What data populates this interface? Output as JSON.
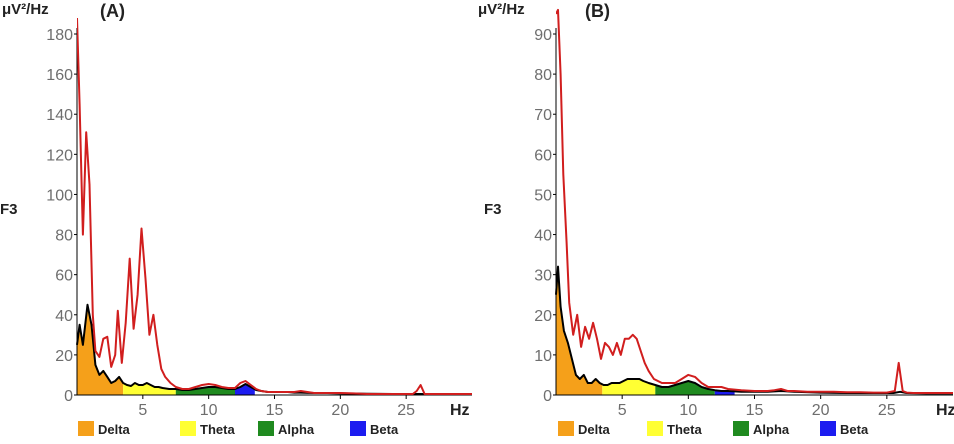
{
  "colors": {
    "delta": "#f5a01a",
    "theta": "#ffff33",
    "alpha": "#1f8a1f",
    "beta": "#1c1cf0",
    "red_trace": "#d11e1e",
    "black_trace": "#000000"
  },
  "legend": [
    {
      "key": "delta",
      "label": "Delta"
    },
    {
      "key": "theta",
      "label": "Theta"
    },
    {
      "key": "alpha",
      "label": "Alpha"
    },
    {
      "key": "beta",
      "label": "Beta"
    }
  ],
  "chart_data": [
    {
      "type": "line",
      "title": "(A)",
      "ylabel": "μV²/Hz",
      "xlabel": "Hz",
      "channel": "F3",
      "xlim": [
        0,
        30
      ],
      "ylim": [
        0,
        190
      ],
      "xticks": [
        5,
        10,
        15,
        20,
        25
      ],
      "yticks": [
        0,
        20,
        40,
        60,
        80,
        100,
        120,
        140,
        160,
        180
      ],
      "bands": [
        {
          "name": "Delta",
          "from": 0,
          "to": 3.5
        },
        {
          "name": "Theta",
          "from": 3.5,
          "to": 7.5
        },
        {
          "name": "Alpha",
          "from": 7.5,
          "to": 12
        },
        {
          "name": "Beta",
          "from": 12,
          "to": 13.5
        }
      ],
      "series": [
        {
          "name": "red",
          "x": [
            0,
            0.2,
            0.45,
            0.7,
            0.95,
            1.2,
            1.4,
            1.7,
            2.0,
            2.3,
            2.6,
            2.9,
            3.1,
            3.4,
            3.7,
            4.0,
            4.3,
            4.6,
            4.9,
            5.2,
            5.5,
            5.8,
            6.1,
            6.4,
            6.7,
            7.1,
            7.5,
            8.0,
            8.5,
            9.0,
            9.5,
            10.0,
            10.5,
            11.0,
            11.5,
            12.0,
            12.4,
            12.8,
            13.2,
            13.6,
            14.0,
            14.5,
            15.0,
            15.5,
            16.0,
            16.5,
            17.0,
            18.0,
            19.0,
            20.0,
            21.0,
            22.0,
            23.0,
            24.0,
            25.0,
            25.5,
            25.8,
            26.1,
            26.4,
            27.0,
            28.0,
            29.0,
            30.0
          ],
          "values": [
            188,
            145,
            80,
            131,
            105,
            40,
            22,
            19,
            28,
            29,
            14,
            20,
            42,
            16,
            36,
            68,
            33,
            50,
            83,
            58,
            30,
            40,
            25,
            13,
            9,
            6,
            4,
            3,
            3,
            4,
            5,
            5.5,
            5,
            4,
            3.5,
            3.5,
            6,
            7,
            5,
            3,
            2,
            1.5,
            1.5,
            1.5,
            1.5,
            1.5,
            2,
            1,
            1,
            1,
            0.8,
            0.5,
            0.5,
            0.5,
            0.5,
            0.5,
            2,
            5,
            0.5,
            0.5,
            0.5,
            0.5,
            0.5
          ]
        },
        {
          "name": "black",
          "x": [
            0,
            0.2,
            0.45,
            0.8,
            1.1,
            1.4,
            1.7,
            2.0,
            2.3,
            2.6,
            2.9,
            3.2,
            3.5,
            3.8,
            4.1,
            4.4,
            4.7,
            5.0,
            5.3,
            5.6,
            5.9,
            6.2,
            6.5,
            7.0,
            7.5,
            8.0,
            8.5,
            9.0,
            9.5,
            10.0,
            10.5,
            11.0,
            11.5,
            12.0,
            12.4,
            12.8,
            13.2,
            13.6,
            14.0,
            14.5,
            15.0,
            15.5,
            16.0,
            16.5,
            17.0,
            18.0,
            19.0,
            20.0,
            22.0,
            24.0,
            26.0,
            28.0,
            30.0
          ],
          "values": [
            25,
            35,
            25,
            45,
            35,
            15,
            10,
            12,
            9,
            6,
            7,
            9,
            6,
            5,
            4.5,
            6,
            5,
            5,
            6,
            5,
            4,
            4,
            3.5,
            3,
            3,
            2.5,
            2.5,
            3,
            3.5,
            4,
            4,
            3.5,
            3,
            3,
            4,
            5.5,
            4,
            2.5,
            2,
            1.5,
            1.5,
            1.5,
            1.5,
            1.2,
            1.2,
            1,
            1,
            0.8,
            0.6,
            0.5,
            0.5,
            0.4,
            0.4
          ]
        }
      ]
    },
    {
      "type": "line",
      "title": "(B)",
      "ylabel": "μV²/Hz",
      "xlabel": "Hz",
      "channel": "F3",
      "xlim": [
        0,
        30
      ],
      "ylim": [
        0,
        95
      ],
      "xticks": [
        5,
        10,
        15,
        20,
        25
      ],
      "yticks": [
        0,
        10,
        20,
        30,
        40,
        50,
        60,
        70,
        80,
        90
      ],
      "bands": [
        {
          "name": "Delta",
          "from": 0,
          "to": 3.5
        },
        {
          "name": "Theta",
          "from": 3.5,
          "to": 7.5
        },
        {
          "name": "Alpha",
          "from": 7.5,
          "to": 12
        },
        {
          "name": "Beta",
          "from": 12,
          "to": 13.5
        }
      ],
      "series": [
        {
          "name": "red",
          "x": [
            0,
            0.15,
            0.35,
            0.55,
            0.8,
            1.0,
            1.3,
            1.6,
            1.9,
            2.2,
            2.5,
            2.8,
            3.1,
            3.4,
            3.7,
            4.0,
            4.3,
            4.6,
            4.9,
            5.2,
            5.5,
            5.8,
            6.1,
            6.4,
            6.7,
            7.0,
            7.4,
            8.0,
            8.5,
            9.0,
            9.5,
            10.0,
            10.5,
            11.0,
            11.5,
            12.0,
            12.5,
            13.0,
            14.0,
            15.0,
            16.0,
            16.5,
            17.0,
            17.5,
            18.0,
            19.0,
            20.0,
            21.0,
            22.0,
            23.0,
            24.0,
            25.0,
            25.6,
            25.9,
            26.2,
            26.5,
            27.0,
            28.0,
            30.0
          ],
          "values": [
            95,
            96,
            80,
            55,
            38,
            23,
            15,
            20,
            12,
            17,
            14,
            18,
            14,
            9,
            13,
            12,
            10,
            13,
            10,
            14,
            14,
            15,
            14,
            11,
            8,
            6,
            4,
            3,
            3,
            3,
            4,
            5,
            4.5,
            3,
            2,
            2,
            2,
            1.5,
            1.2,
            1,
            1,
            1.2,
            1.5,
            1,
            1,
            0.8,
            0.8,
            0.8,
            0.7,
            0.7,
            0.6,
            0.6,
            1,
            8,
            1,
            0.6,
            0.5,
            0.5,
            0.5
          ]
        },
        {
          "name": "black",
          "x": [
            0,
            0.15,
            0.35,
            0.6,
            0.9,
            1.2,
            1.5,
            1.8,
            2.1,
            2.4,
            2.7,
            3.0,
            3.3,
            3.6,
            3.9,
            4.2,
            4.5,
            4.8,
            5.1,
            5.4,
            5.7,
            6.0,
            6.3,
            6.6,
            7.0,
            7.5,
            8.0,
            8.5,
            9.0,
            9.5,
            10.0,
            10.5,
            11.0,
            11.5,
            12.0,
            12.5,
            13.0,
            14.0,
            15.0,
            16.0,
            17.0,
            18.0,
            20.0,
            22.0,
            24.0,
            25.5,
            26.0,
            26.5,
            28.0,
            30.0
          ],
          "values": [
            25,
            32,
            22,
            16,
            13,
            9,
            5,
            4,
            5,
            3,
            3,
            4,
            3,
            2.5,
            2.5,
            3,
            3,
            3,
            3.5,
            4,
            4,
            4,
            4,
            3.5,
            3,
            2.5,
            2,
            2,
            2.5,
            3,
            3.5,
            3,
            2,
            1.5,
            1.2,
            1,
            1,
            0.8,
            0.8,
            0.8,
            1,
            0.8,
            0.6,
            0.5,
            0.5,
            0.5,
            0.8,
            0.5,
            0.4,
            0.4
          ]
        }
      ]
    }
  ]
}
